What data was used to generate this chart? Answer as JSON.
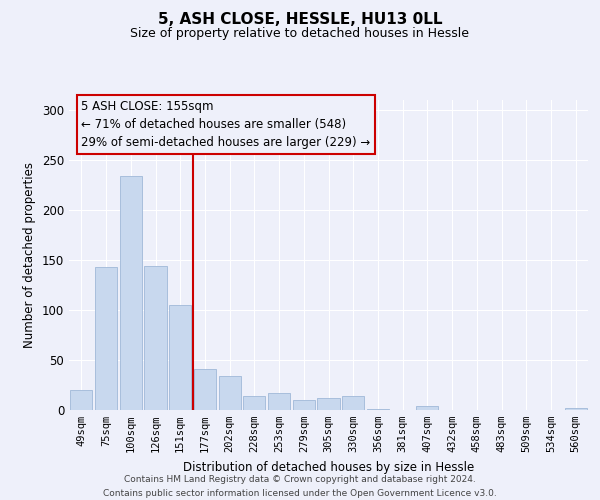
{
  "title": "5, ASH CLOSE, HESSLE, HU13 0LL",
  "subtitle": "Size of property relative to detached houses in Hessle",
  "xlabel": "Distribution of detached houses by size in Hessle",
  "ylabel": "Number of detached properties",
  "bar_labels": [
    "49sqm",
    "75sqm",
    "100sqm",
    "126sqm",
    "151sqm",
    "177sqm",
    "202sqm",
    "228sqm",
    "253sqm",
    "279sqm",
    "305sqm",
    "330sqm",
    "356sqm",
    "381sqm",
    "407sqm",
    "432sqm",
    "458sqm",
    "483sqm",
    "509sqm",
    "534sqm",
    "560sqm"
  ],
  "bar_values": [
    20,
    143,
    234,
    144,
    105,
    41,
    34,
    14,
    17,
    10,
    12,
    14,
    1,
    0,
    4,
    0,
    0,
    0,
    0,
    0,
    2
  ],
  "bar_color": "#c8d8ee",
  "bar_edge_color": "#a0b8d8",
  "highlight_line_color": "#cc0000",
  "ylim": [
    0,
    310
  ],
  "yticks": [
    0,
    50,
    100,
    150,
    200,
    250,
    300
  ],
  "annotation_line1": "5 ASH CLOSE: 155sqm",
  "annotation_line2": "← 71% of detached houses are smaller (548)",
  "annotation_line3": "29% of semi-detached houses are larger (229) →",
  "annotation_box_edge_color": "#cc0000",
  "footer_line1": "Contains HM Land Registry data © Crown copyright and database right 2024.",
  "footer_line2": "Contains public sector information licensed under the Open Government Licence v3.0.",
  "bg_color": "#eef0fa",
  "grid_color": "#ffffff",
  "highlight_bar_index": 4
}
